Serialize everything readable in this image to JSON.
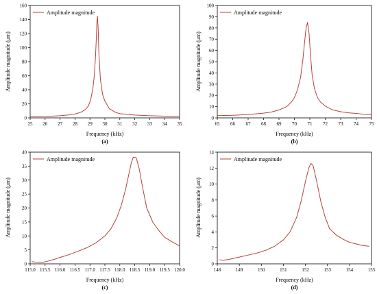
{
  "chart_data": [
    {
      "panel": "(a)",
      "type": "line",
      "xlabel": "Frequency (kHz)",
      "ylabel": "Amplitude magnitude (μm)",
      "xlim": [
        25,
        35
      ],
      "ylim": [
        0,
        160
      ],
      "xticks": [
        25,
        26,
        27,
        28,
        29,
        30,
        31,
        32,
        33,
        34,
        35
      ],
      "yticks": [
        0,
        20,
        40,
        60,
        80,
        100,
        120,
        140,
        160
      ],
      "legend_position": "top-left",
      "series": [
        {
          "name": "Amplitude magnitude",
          "color": "#b5413a",
          "x": [
            25,
            26,
            27,
            27.5,
            28,
            28.4,
            28.7,
            28.9,
            29.05,
            29.2,
            29.3,
            29.38,
            29.43,
            29.47,
            29.5,
            29.55,
            29.6,
            29.7,
            29.85,
            30,
            30.3,
            30.7,
            31,
            32,
            33,
            34,
            35
          ],
          "y": [
            1.5,
            2,
            3,
            4,
            5.5,
            8,
            12,
            17,
            26,
            42,
            62,
            90,
            115,
            138,
            145,
            128,
            92,
            55,
            33,
            24,
            13,
            8,
            6,
            4,
            3,
            2.5,
            2
          ]
        }
      ]
    },
    {
      "panel": "(b)",
      "type": "line",
      "xlabel": "Frequency (kHz)",
      "ylabel": "Amplitude magnitude (μm)",
      "xlim": [
        65,
        75
      ],
      "ylim": [
        0,
        100
      ],
      "xticks": [
        65,
        66,
        67,
        68,
        69,
        70,
        71,
        72,
        73,
        74,
        75
      ],
      "yticks": [
        0,
        10,
        20,
        30,
        40,
        50,
        60,
        70,
        80,
        90,
        100
      ],
      "legend_position": "top-left",
      "series": [
        {
          "name": "Amplitude magnitude",
          "color": "#b5413a",
          "x": [
            65,
            66,
            67,
            68,
            68.5,
            69,
            69.5,
            69.8,
            70,
            70.2,
            70.4,
            70.55,
            70.65,
            70.75,
            70.85,
            70.95,
            71.05,
            71.15,
            71.3,
            71.5,
            71.7,
            72,
            72.5,
            73,
            73.5,
            74,
            74.5,
            75
          ],
          "y": [
            2,
            2.3,
            3,
            4.2,
            5.2,
            7,
            10,
            14,
            18,
            25,
            36,
            52,
            66,
            79,
            85,
            75,
            55,
            38,
            26,
            18,
            14,
            10.5,
            7,
            5.5,
            4.5,
            4,
            3.2,
            2.8
          ]
        }
      ]
    },
    {
      "panel": "(c)",
      "type": "line",
      "xlabel": "Frequency (kHz)",
      "ylabel": "Amplitude magnitude (μm)",
      "xlim": [
        115,
        120
      ],
      "ylim": [
        0,
        40
      ],
      "xticks": [
        115,
        115.5,
        116,
        116.5,
        117,
        117.5,
        118,
        118.5,
        119,
        119.5,
        120
      ],
      "ytick_values": [
        0,
        5,
        10,
        15,
        20,
        25,
        30,
        35,
        40
      ],
      "yticks": [
        "0",
        "5",
        "10",
        "15",
        "20",
        "25",
        "30",
        "35",
        "40"
      ],
      "xtick_labels": [
        "115.0",
        "115.5",
        "116.0",
        "116.5",
        "117.0",
        "117.5",
        "118.0",
        "118.5",
        "119.0",
        "119.5",
        "120.0"
      ],
      "legend_position": "top-left",
      "series": [
        {
          "name": "Amplitude magnitude",
          "color": "#b5413a",
          "x": [
            115.05,
            115.2,
            115.4,
            115.6,
            115.8,
            116,
            116.3,
            116.6,
            116.9,
            117.2,
            117.5,
            117.7,
            117.9,
            118.05,
            118.2,
            118.3,
            118.38,
            118.45,
            118.55,
            118.65,
            118.75,
            118.9,
            119.1,
            119.3,
            119.5,
            119.7,
            119.9,
            120
          ],
          "y": [
            0.8,
            0.6,
            0.5,
            1,
            1.6,
            2.3,
            3.3,
            4.5,
            5.8,
            7.5,
            10,
            12.5,
            16.5,
            21,
            27,
            32,
            36,
            38.2,
            38,
            34,
            28,
            20,
            15,
            12,
            9.5,
            8.2,
            7,
            6.4
          ]
        }
      ]
    },
    {
      "panel": "(d)",
      "type": "line",
      "xlabel": "Frequency (kHz)",
      "ylabel": "Amplitude magnitude (μm)",
      "xlim": [
        148,
        155
      ],
      "ylim": [
        0,
        14
      ],
      "xticks": [
        148,
        149,
        150,
        151,
        152,
        153,
        154,
        155
      ],
      "yticks": [
        0,
        2,
        4,
        6,
        8,
        10,
        12,
        14
      ],
      "legend_position": "top-left",
      "series": [
        {
          "name": "Amplitude magnitude",
          "color": "#b5413a",
          "x": [
            148.1,
            148.3,
            148.6,
            149,
            149.4,
            149.8,
            150.2,
            150.6,
            151,
            151.3,
            151.6,
            151.8,
            152,
            152.15,
            152.25,
            152.35,
            152.5,
            152.7,
            152.9,
            153.1,
            153.4,
            153.7,
            154,
            154.3,
            154.6,
            154.9
          ],
          "y": [
            0.5,
            0.45,
            0.6,
            0.85,
            1.1,
            1.35,
            1.7,
            2.2,
            3,
            4,
            5.8,
            7.8,
            10.3,
            12,
            12.6,
            12.3,
            10.5,
            7.8,
            5.8,
            4.4,
            3.6,
            3.1,
            2.7,
            2.5,
            2.3,
            2.2
          ]
        }
      ]
    }
  ]
}
